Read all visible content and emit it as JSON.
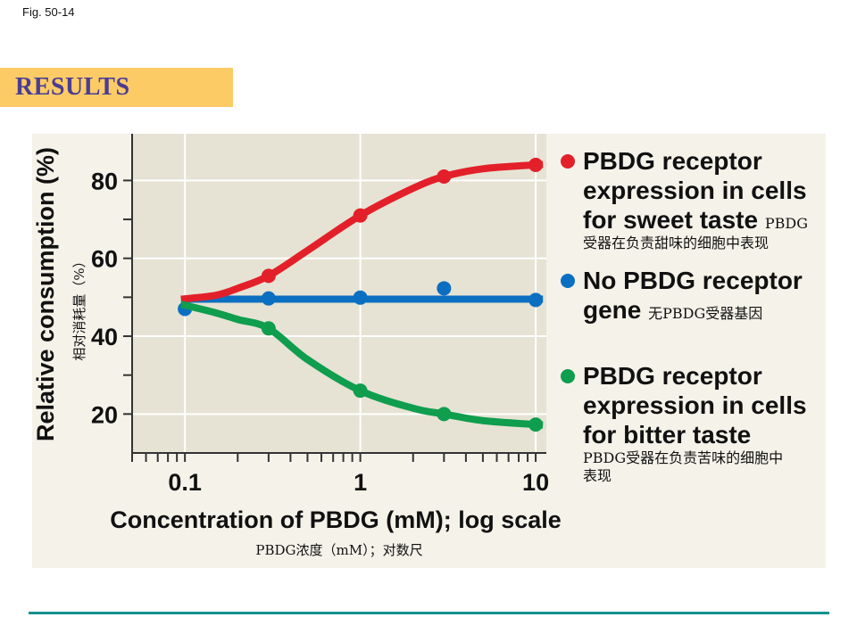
{
  "figure_label": "Fig. 50-14",
  "banner": {
    "title": "RESULTS",
    "bg_color": "#fdcb66",
    "text_color": "#4b3c94"
  },
  "legend": [
    {
      "name": "sweet",
      "color": "#e3202a",
      "lines": [
        "PBDG receptor",
        "expression in cells",
        "for sweet taste"
      ],
      "inline_zh": "PBDG",
      "zh": "受器在负责甜味的细胞中表现"
    },
    {
      "name": "none",
      "color": "#0b6fc1",
      "lines": [
        "No PBDG receptor",
        "gene"
      ],
      "inline_zh": "无PBDG受器基因",
      "zh": ""
    },
    {
      "name": "bitter",
      "color": "#0f9d4e",
      "lines": [
        "PBDG receptor",
        "expression in cells",
        "for bitter taste"
      ],
      "inline_zh": "",
      "zh_lines": [
        "PBDG受器在负责苦味的细胞中",
        "表现"
      ]
    }
  ],
  "chart_data": {
    "type": "line",
    "title": "",
    "xlabel": "Concentration of PBDG (mM); log scale",
    "xlabel_zh": "PBDG浓度（mM）；对数尺",
    "ylabel": "Relative consumption (%)",
    "ylabel_zh": "相对消耗量（%）",
    "x_scale": "log",
    "xlim": [
      0.05,
      11.5
    ],
    "ylim": [
      10,
      92
    ],
    "xticks_major": [
      0.1,
      1,
      10
    ],
    "xtick_labels": [
      "0.1",
      "1",
      "10"
    ],
    "xticks_minor": [
      0.05,
      0.06,
      0.07,
      0.08,
      0.09,
      0.2,
      0.3,
      0.4,
      0.5,
      0.6,
      0.7,
      0.8,
      0.9,
      2,
      3,
      4,
      5,
      6,
      7,
      8,
      9
    ],
    "yticks_major": [
      20,
      40,
      60,
      80
    ],
    "ytick_labels": [
      "20",
      "40",
      "60",
      "80"
    ],
    "yticks_minor": [
      30,
      50,
      70
    ],
    "grid": true,
    "legend_position": "right",
    "series": [
      {
        "name": "PBDG receptor expression in cells for sweet taste",
        "color": "#e3202a",
        "points": [
          [
            0.3,
            55.5
          ],
          [
            1,
            71
          ],
          [
            3,
            81
          ],
          [
            10,
            84
          ]
        ],
        "curve": [
          [
            0.095,
            49.5
          ],
          [
            0.15,
            50.5
          ],
          [
            0.2,
            52.3
          ],
          [
            0.3,
            55.5
          ],
          [
            0.5,
            62
          ],
          [
            1,
            71
          ],
          [
            2,
            78
          ],
          [
            3,
            81
          ],
          [
            5,
            83
          ],
          [
            10,
            84
          ],
          [
            11,
            84.1
          ]
        ]
      },
      {
        "name": "No PBDG receptor gene",
        "color": "#0b6fc1",
        "points": [
          [
            0.1,
            47
          ],
          [
            0.3,
            49.7
          ],
          [
            1,
            49.9
          ],
          [
            3,
            52.3
          ],
          [
            10,
            49.3
          ]
        ],
        "curve": [
          [
            0.095,
            49.5
          ],
          [
            11,
            49.5
          ]
        ]
      },
      {
        "name": "PBDG receptor expression in cells for bitter taste",
        "color": "#0f9d4e",
        "points": [
          [
            0.3,
            42
          ],
          [
            1,
            26
          ],
          [
            3,
            20
          ],
          [
            10,
            17.3
          ]
        ],
        "curve": [
          [
            0.095,
            48.2
          ],
          [
            0.15,
            46
          ],
          [
            0.2,
            44.3
          ],
          [
            0.3,
            42
          ],
          [
            0.5,
            34
          ],
          [
            1,
            26
          ],
          [
            2,
            21.5
          ],
          [
            3,
            20
          ],
          [
            5,
            18.3
          ],
          [
            10,
            17.3
          ],
          [
            11,
            17.2
          ]
        ]
      }
    ]
  }
}
